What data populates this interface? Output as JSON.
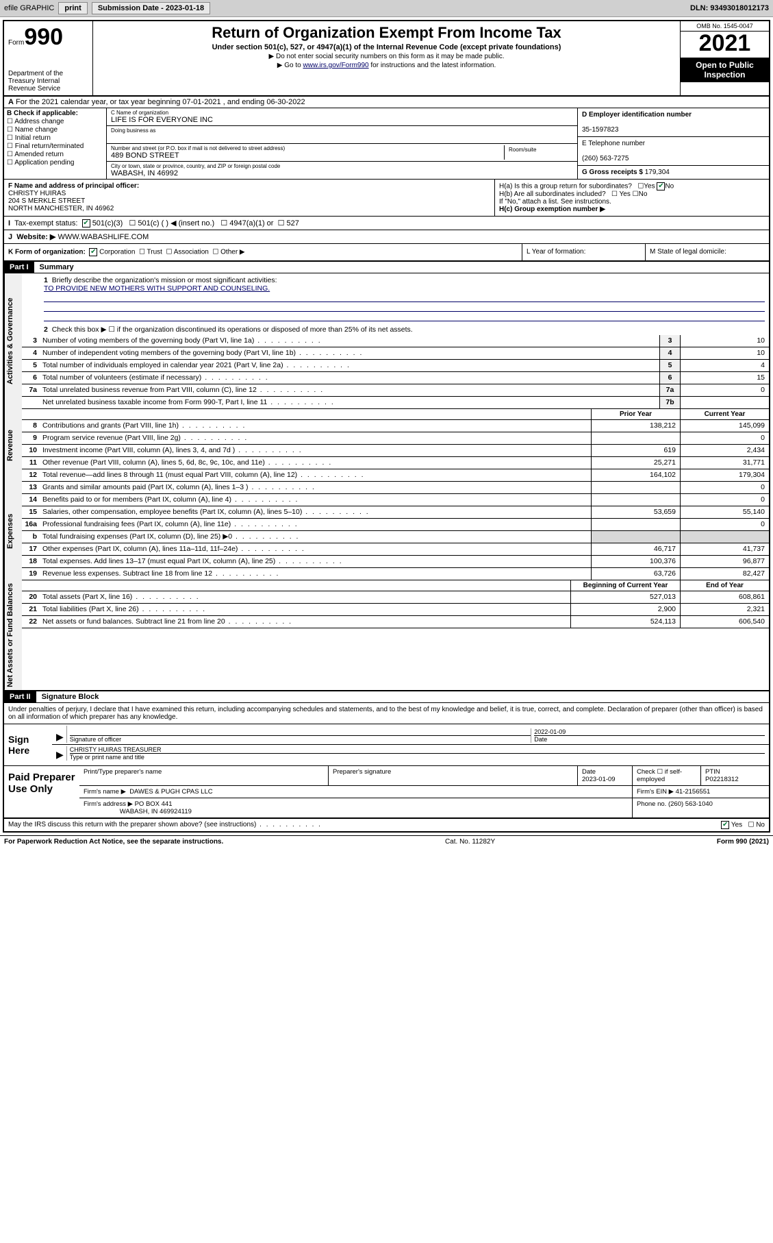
{
  "toolbar": {
    "efile": "efile GRAPHIC",
    "print": "print",
    "sub_label": "Submission Date - 2023-01-18",
    "dln": "DLN: 93493018012173"
  },
  "header": {
    "form_label": "Form",
    "form_no": "990",
    "dept": "Department of the Treasury\nInternal Revenue Service",
    "title": "Return of Organization Exempt From Income Tax",
    "sub": "Under section 501(c), 527, or 4947(a)(1) of the Internal Revenue Code (except private foundations)",
    "note1": "▶ Do not enter social security numbers on this form as it may be made public.",
    "note2_pre": "▶ Go to ",
    "note2_link": "www.irs.gov/Form990",
    "note2_post": " for instructions and the latest information.",
    "omb": "OMB No. 1545-0047",
    "year": "2021",
    "open": "Open to Public Inspection"
  },
  "row_a": "For the 2021 calendar year, or tax year beginning 07-01-2021  , and ending 06-30-2022",
  "col_b": {
    "title": "B Check if applicable:",
    "opts": [
      "Address change",
      "Name change",
      "Initial return",
      "Final return/terminated",
      "Amended return",
      "Application pending"
    ]
  },
  "col_c": {
    "name_lbl": "C Name of organization",
    "name": "LIFE IS FOR EVERYONE INC",
    "dba_lbl": "Doing business as",
    "addr_lbl": "Number and street (or P.O. box if mail is not delivered to street address)",
    "room_lbl": "Room/suite",
    "addr": "489 BOND STREET",
    "city_lbl": "City or town, state or province, country, and ZIP or foreign postal code",
    "city": "WABASH, IN  46992"
  },
  "col_d": {
    "ein_lbl": "D Employer identification number",
    "ein": "35-1597823",
    "tel_lbl": "E Telephone number",
    "tel": "(260) 563-7275",
    "gross_lbl": "G Gross receipts $",
    "gross": "179,304"
  },
  "section_f": {
    "lbl": "F Name and address of principal officer:",
    "name": "CHRISTY HUIRAS",
    "addr1": "204 S MERKLE STREET",
    "addr2": "NORTH MANCHESTER, IN  46962"
  },
  "section_h": {
    "ha": "H(a)  Is this a group return for subordinates?",
    "hb": "H(b)  Are all subordinates included?",
    "hb_note": "If \"No,\" attach a list. See instructions.",
    "hc": "H(c)  Group exemption number ▶"
  },
  "row_i": {
    "lbl": "Tax-exempt status:",
    "opt1": "501(c)(3)",
    "opt2": "501(c) (  ) ◀ (insert no.)",
    "opt3": "4947(a)(1) or",
    "opt4": "527"
  },
  "row_j": {
    "lbl": "Website: ▶",
    "val": "WWW.WABASHLIFE.COM"
  },
  "row_k": {
    "lbl": "K Form of organization:",
    "opts": [
      "Corporation",
      "Trust",
      "Association",
      "Other ▶"
    ]
  },
  "row_l": "L Year of formation:",
  "row_m": "M State of legal domicile:",
  "part1": {
    "hdr": "Part I",
    "title": "Summary"
  },
  "mission": {
    "num": "1",
    "lbl": "Briefly describe the organization's mission or most significant activities:",
    "val": "TO PROVIDE NEW MOTHERS WITH SUPPORT AND COUNSELING."
  },
  "line2": "Check this box ▶ ☐  if the organization discontinued its operations or disposed of more than 25% of its net assets.",
  "vtabs": {
    "gov": "Activities & Governance",
    "rev": "Revenue",
    "exp": "Expenses",
    "net": "Net Assets or Fund Balances"
  },
  "gov_lines": [
    {
      "n": "3",
      "d": "Number of voting members of the governing body (Part VI, line 1a)",
      "box": "3",
      "v": "10"
    },
    {
      "n": "4",
      "d": "Number of independent voting members of the governing body (Part VI, line 1b)",
      "box": "4",
      "v": "10"
    },
    {
      "n": "5",
      "d": "Total number of individuals employed in calendar year 2021 (Part V, line 2a)",
      "box": "5",
      "v": "4"
    },
    {
      "n": "6",
      "d": "Total number of volunteers (estimate if necessary)",
      "box": "6",
      "v": "15"
    },
    {
      "n": "7a",
      "d": "Total unrelated business revenue from Part VIII, column (C), line 12",
      "box": "7a",
      "v": "0"
    },
    {
      "n": "",
      "d": "Net unrelated business taxable income from Form 990-T, Part I, line 11",
      "box": "7b",
      "v": ""
    }
  ],
  "hdr_cols": {
    "prior": "Prior Year",
    "curr": "Current Year",
    "beg": "Beginning of Current Year",
    "end": "End of Year"
  },
  "rev_lines": [
    {
      "n": "8",
      "d": "Contributions and grants (Part VIII, line 1h)",
      "p": "138,212",
      "c": "145,099"
    },
    {
      "n": "9",
      "d": "Program service revenue (Part VIII, line 2g)",
      "p": "",
      "c": "0"
    },
    {
      "n": "10",
      "d": "Investment income (Part VIII, column (A), lines 3, 4, and 7d )",
      "p": "619",
      "c": "2,434"
    },
    {
      "n": "11",
      "d": "Other revenue (Part VIII, column (A), lines 5, 6d, 8c, 9c, 10c, and 11e)",
      "p": "25,271",
      "c": "31,771"
    },
    {
      "n": "12",
      "d": "Total revenue—add lines 8 through 11 (must equal Part VIII, column (A), line 12)",
      "p": "164,102",
      "c": "179,304"
    }
  ],
  "exp_lines": [
    {
      "n": "13",
      "d": "Grants and similar amounts paid (Part IX, column (A), lines 1–3 )",
      "p": "",
      "c": "0"
    },
    {
      "n": "14",
      "d": "Benefits paid to or for members (Part IX, column (A), line 4)",
      "p": "",
      "c": "0"
    },
    {
      "n": "15",
      "d": "Salaries, other compensation, employee benefits (Part IX, column (A), lines 5–10)",
      "p": "53,659",
      "c": "55,140"
    },
    {
      "n": "16a",
      "d": "Professional fundraising fees (Part IX, column (A), line 11e)",
      "p": "",
      "c": "0"
    },
    {
      "n": "b",
      "d": "Total fundraising expenses (Part IX, column (D), line 25) ▶0",
      "p": "shade",
      "c": "shade"
    },
    {
      "n": "17",
      "d": "Other expenses (Part IX, column (A), lines 11a–11d, 11f–24e)",
      "p": "46,717",
      "c": "41,737"
    },
    {
      "n": "18",
      "d": "Total expenses. Add lines 13–17 (must equal Part IX, column (A), line 25)",
      "p": "100,376",
      "c": "96,877"
    },
    {
      "n": "19",
      "d": "Revenue less expenses. Subtract line 18 from line 12",
      "p": "63,726",
      "c": "82,427"
    }
  ],
  "net_lines": [
    {
      "n": "20",
      "d": "Total assets (Part X, line 16)",
      "p": "527,013",
      "c": "608,861"
    },
    {
      "n": "21",
      "d": "Total liabilities (Part X, line 26)",
      "p": "2,900",
      "c": "2,321"
    },
    {
      "n": "22",
      "d": "Net assets or fund balances. Subtract line 21 from line 20",
      "p": "524,113",
      "c": "606,540"
    }
  ],
  "part2": {
    "hdr": "Part II",
    "title": "Signature Block"
  },
  "sig_intro": "Under penalties of perjury, I declare that I have examined this return, including accompanying schedules and statements, and to the best of my knowledge and belief, it is true, correct, and complete. Declaration of preparer (other than officer) is based on all information of which preparer has any knowledge.",
  "sign": {
    "here": "Sign Here",
    "sig_lbl": "Signature of officer",
    "date_lbl": "Date",
    "date": "2022-01-09",
    "name": "CHRISTY HUIRAS TREASURER",
    "name_lbl": "Type or print name and title"
  },
  "prep": {
    "title": "Paid Preparer Use Only",
    "h1": "Print/Type preparer's name",
    "h2": "Preparer's signature",
    "h3": "Date",
    "date": "2023-01-09",
    "h4": "Check ☐ if self-employed",
    "h5": "PTIN",
    "ptin": "P02218312",
    "firm_lbl": "Firm's name   ▶",
    "firm": "DAWES & PUGH CPAS LLC",
    "ein_lbl": "Firm's EIN ▶",
    "ein": "41-2156551",
    "addr_lbl": "Firm's address ▶",
    "addr1": "PO BOX 441",
    "addr2": "WABASH, IN  469924119",
    "phone_lbl": "Phone no.",
    "phone": "(260) 563-1040"
  },
  "footer_q": "May the IRS discuss this return with the preparer shown above? (see instructions)",
  "paperwork": {
    "l": "For Paperwork Reduction Act Notice, see the separate instructions.",
    "m": "Cat. No. 11282Y",
    "r": "Form 990 (2021)"
  },
  "colors": {
    "link": "#003366",
    "check": "#0a7a3a",
    "shade": "#d8d8d8"
  }
}
